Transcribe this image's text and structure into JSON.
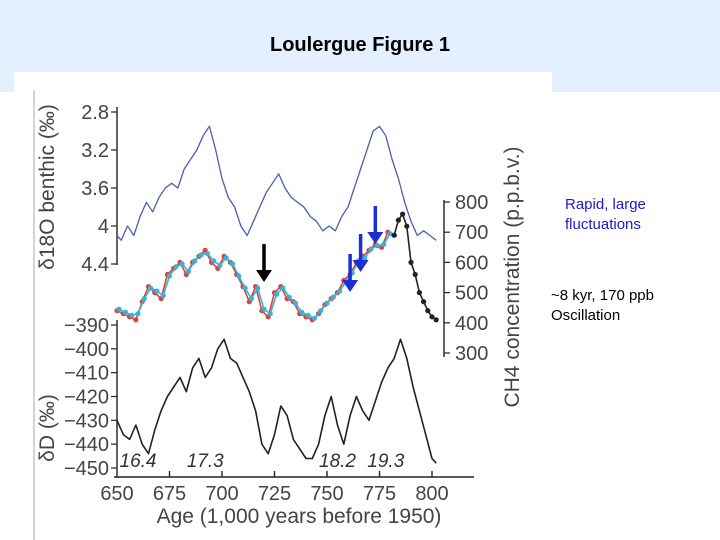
{
  "slide": {
    "title": "Loulergue Figure 1",
    "notes": {
      "rapid": [
        "Rapid, large",
        "fluctuations"
      ],
      "oscillation": [
        "~8 kyr, 170 ppb",
        "Oscillation"
      ]
    }
  },
  "colors": {
    "benthic": "#4a5fb3",
    "ch4_a": "#e0413a",
    "ch4_b": "#35b3d8",
    "ch4_c": "#222222",
    "dD": "#222222",
    "arrow_black": "#000000",
    "arrow_blue": "#1c2fd6"
  },
  "chart_data": {
    "type": "line",
    "x": {
      "label": "Age (1,000 years before 1950)",
      "ticks": [
        "650",
        "675",
        "700",
        "725",
        "750",
        "775",
        "800"
      ],
      "range": [
        650,
        805
      ]
    },
    "axes": [
      {
        "id": "benthic",
        "label": "δ18O benthic (‰)",
        "side": "left",
        "reversed": true,
        "range": [
          2.8,
          4.4
        ],
        "ticks": [
          "2.8",
          "3.2",
          "3.6",
          "4",
          "4.4"
        ]
      },
      {
        "id": "ch4",
        "label": "CH4 concentration (p.p.b.v.)",
        "side": "right",
        "range": [
          300,
          800
        ],
        "ticks": [
          "800",
          "700",
          "600",
          "500",
          "400",
          "300"
        ]
      },
      {
        "id": "dD",
        "label": "δD (‰)",
        "side": "left",
        "range": [
          -450,
          -390
        ],
        "ticks": [
          "−390",
          "−400",
          "−410",
          "−420",
          "−430",
          "−440",
          "−450"
        ]
      }
    ],
    "series": [
      {
        "axis": "benthic",
        "color": "#4a5fb3",
        "x": [
          650,
          652,
          655,
          658,
          661,
          664,
          667,
          670,
          673,
          676,
          679,
          682,
          685,
          688,
          691,
          694,
          697,
          700,
          703,
          706,
          709,
          712,
          715,
          718,
          721,
          724,
          727,
          730,
          733,
          736,
          739,
          742,
          745,
          748,
          751,
          754,
          757,
          760,
          763,
          766,
          769,
          772,
          775,
          778,
          781,
          784,
          787,
          790,
          793,
          796,
          799,
          802
        ],
        "y": [
          4.1,
          4.15,
          4.0,
          4.1,
          3.9,
          3.75,
          3.85,
          3.7,
          3.6,
          3.55,
          3.6,
          3.4,
          3.3,
          3.2,
          3.05,
          2.95,
          3.2,
          3.5,
          3.7,
          3.8,
          4.0,
          4.1,
          3.95,
          3.8,
          3.65,
          3.55,
          3.45,
          3.6,
          3.7,
          3.75,
          3.8,
          3.9,
          3.95,
          4.05,
          4.0,
          4.05,
          3.9,
          3.8,
          3.6,
          3.4,
          3.2,
          3.0,
          2.95,
          3.05,
          3.3,
          3.5,
          3.75,
          3.95,
          4.1,
          4.05,
          4.1,
          4.15
        ]
      },
      {
        "axis": "ch4",
        "color": "#e0413a",
        "x": [
          650,
          653,
          656,
          659,
          662,
          665,
          668,
          671,
          674,
          677,
          680,
          683,
          686,
          689,
          692,
          695,
          698,
          701,
          704,
          707,
          710,
          713,
          716,
          719,
          722,
          725,
          728,
          731,
          734,
          737,
          740,
          743,
          746,
          749,
          752,
          755,
          758,
          761,
          764,
          767,
          770,
          773,
          776,
          779,
          782
        ],
        "y": [
          440,
          430,
          420,
          410,
          470,
          520,
          500,
          480,
          560,
          580,
          600,
          560,
          600,
          620,
          640,
          600,
          580,
          620,
          600,
          560,
          520,
          470,
          520,
          440,
          420,
          500,
          520,
          480,
          470,
          430,
          420,
          410,
          430,
          460,
          480,
          500,
          540,
          560,
          600,
          620,
          640,
          660,
          650,
          700,
          690
        ]
      },
      {
        "axis": "ch4",
        "color": "#35b3d8",
        "x": [
          651,
          654,
          657,
          660,
          663,
          666,
          669,
          672,
          675,
          678,
          681,
          684,
          687,
          690,
          693,
          696,
          699,
          702,
          705,
          708,
          711,
          714,
          717,
          720,
          723,
          726,
          729,
          732,
          735,
          738,
          741,
          744,
          747,
          750,
          753,
          756,
          759,
          762,
          765,
          768,
          771,
          774,
          777,
          780
        ],
        "y": [
          445,
          435,
          425,
          430,
          480,
          515,
          505,
          490,
          555,
          585,
          595,
          570,
          605,
          625,
          630,
          605,
          590,
          615,
          595,
          555,
          515,
          480,
          515,
          445,
          430,
          495,
          515,
          485,
          465,
          435,
          425,
          415,
          440,
          465,
          485,
          505,
          535,
          565,
          605,
          615,
          645,
          655,
          660,
          695
        ]
      },
      {
        "axis": "ch4",
        "color": "#222222",
        "x": [
          782,
          784,
          786,
          788,
          790,
          792,
          794,
          796,
          798,
          800,
          802
        ],
        "y": [
          690,
          740,
          760,
          720,
          600,
          560,
          500,
          470,
          440,
          420,
          410
        ]
      },
      {
        "axis": "dD",
        "color": "#222222",
        "x": [
          650,
          653,
          656,
          659,
          662,
          665,
          668,
          671,
          674,
          677,
          680,
          683,
          686,
          689,
          692,
          695,
          698,
          701,
          704,
          707,
          710,
          713,
          716,
          719,
          722,
          725,
          728,
          731,
          734,
          737,
          740,
          743,
          746,
          749,
          752,
          755,
          758,
          761,
          764,
          767,
          770,
          773,
          776,
          779,
          782,
          785,
          788,
          791,
          794,
          797,
          800,
          802
        ],
        "y": [
          -430,
          -436,
          -438,
          -432,
          -440,
          -444,
          -434,
          -426,
          -420,
          -416,
          -412,
          -418,
          -408,
          -404,
          -412,
          -408,
          -400,
          -396,
          -404,
          -406,
          -412,
          -418,
          -426,
          -440,
          -444,
          -436,
          -424,
          -428,
          -438,
          -442,
          -446,
          -446,
          -440,
          -428,
          -420,
          -432,
          -440,
          -428,
          -420,
          -426,
          -430,
          -422,
          -414,
          -408,
          -404,
          -396,
          -404,
          -416,
          -426,
          -436,
          -446,
          -448
        ]
      }
    ],
    "annotations": [
      {
        "text": "16.4",
        "x": 660
      },
      {
        "text": "17.3",
        "x": 692
      },
      {
        "text": "18.2",
        "x": 755
      },
      {
        "text": "19.3",
        "x": 778
      }
    ],
    "arrows": [
      {
        "color": "black",
        "x": 720
      },
      {
        "color": "blue",
        "x": 761
      },
      {
        "color": "blue",
        "x": 766
      },
      {
        "color": "blue",
        "x": 773
      }
    ]
  }
}
